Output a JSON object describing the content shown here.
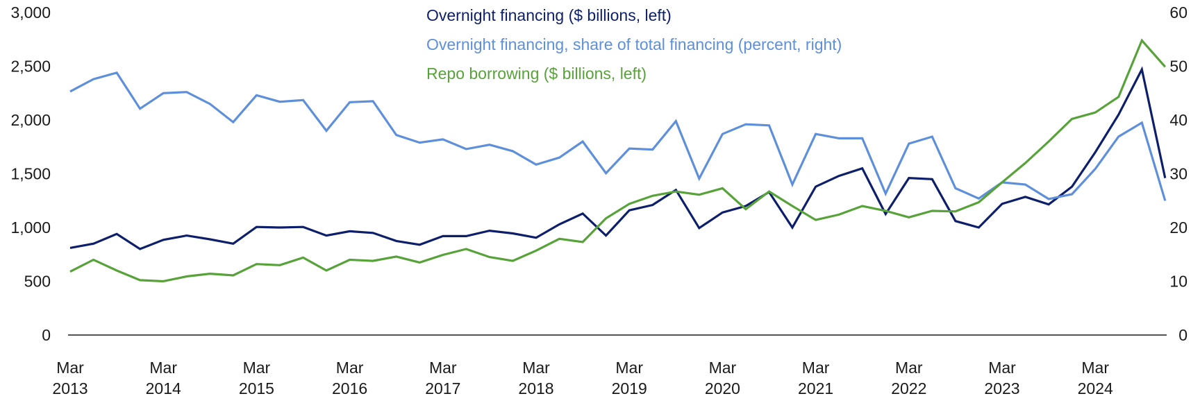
{
  "chart_data": {
    "type": "line",
    "title": "",
    "xlabel": "",
    "ylabel": "",
    "x": [
      "2013-03",
      "2013-06",
      "2013-09",
      "2013-12",
      "2014-03",
      "2014-06",
      "2014-09",
      "2014-12",
      "2015-03",
      "2015-06",
      "2015-09",
      "2015-12",
      "2016-03",
      "2016-06",
      "2016-09",
      "2016-12",
      "2017-03",
      "2017-06",
      "2017-09",
      "2017-12",
      "2018-03",
      "2018-06",
      "2018-09",
      "2018-12",
      "2019-03",
      "2019-06",
      "2019-09",
      "2019-12",
      "2020-03",
      "2020-06",
      "2020-09",
      "2020-12",
      "2021-03",
      "2021-06",
      "2021-09",
      "2021-12",
      "2022-03",
      "2022-06",
      "2022-09",
      "2022-12",
      "2023-03",
      "2023-06",
      "2023-09",
      "2023-12",
      "2024-03",
      "2024-06",
      "2024-09",
      "2024-12"
    ],
    "x_tick_labels": [
      {
        "x": "2013-03",
        "month": "Mar",
        "year": "2013"
      },
      {
        "x": "2014-03",
        "month": "Mar",
        "year": "2014"
      },
      {
        "x": "2015-03",
        "month": "Mar",
        "year": "2015"
      },
      {
        "x": "2016-03",
        "month": "Mar",
        "year": "2016"
      },
      {
        "x": "2017-03",
        "month": "Mar",
        "year": "2017"
      },
      {
        "x": "2018-03",
        "month": "Mar",
        "year": "2018"
      },
      {
        "x": "2019-03",
        "month": "Mar",
        "year": "2019"
      },
      {
        "x": "2020-03",
        "month": "Mar",
        "year": "2020"
      },
      {
        "x": "2021-03",
        "month": "Mar",
        "year": "2021"
      },
      {
        "x": "2022-03",
        "month": "Mar",
        "year": "2022"
      },
      {
        "x": "2023-03",
        "month": "Mar",
        "year": "2023"
      },
      {
        "x": "2024-03",
        "month": "Mar",
        "year": "2024"
      }
    ],
    "y_left": {
      "min": 0,
      "max": 3000,
      "ticks": [
        "0",
        "500",
        "1,000",
        "1,500",
        "2,000",
        "2,500",
        "3,000"
      ],
      "tick_values": [
        0,
        500,
        1000,
        1500,
        2000,
        2500,
        3000
      ]
    },
    "y_right": {
      "min": 0,
      "max": 60,
      "ticks": [
        "0",
        "10",
        "20",
        "30",
        "40",
        "50",
        "60"
      ],
      "tick_values": [
        0,
        10,
        20,
        30,
        40,
        50,
        60
      ]
    },
    "grid": false,
    "legend_position": "top-center",
    "series": [
      {
        "name": "Overnight financing ($ billions, left)",
        "axis": "left",
        "color": "#0d1f6b",
        "values": [
          810,
          850,
          940,
          800,
          885,
          925,
          890,
          850,
          1005,
          1000,
          1005,
          925,
          965,
          950,
          875,
          840,
          920,
          920,
          970,
          945,
          905,
          1030,
          1130,
          925,
          1160,
          1210,
          1350,
          995,
          1140,
          1200,
          1330,
          1000,
          1380,
          1480,
          1550,
          1125,
          1460,
          1450,
          1060,
          1000,
          1220,
          1285,
          1215,
          1380,
          1700,
          2050,
          2470,
          1460
        ]
      },
      {
        "name": "Overnight financing, share of total financing (percent, right)",
        "axis": "right",
        "color": "#5e8fdb",
        "values": [
          45.3,
          47.6,
          48.8,
          42.1,
          45.0,
          45.2,
          43.0,
          39.6,
          44.6,
          43.4,
          43.7,
          38.0,
          43.3,
          43.5,
          37.2,
          35.8,
          36.4,
          34.6,
          35.4,
          34.2,
          31.7,
          33.0,
          36.0,
          30.1,
          34.7,
          34.5,
          39.8,
          29.1,
          37.4,
          39.2,
          39.0,
          28.0,
          37.4,
          36.6,
          36.6,
          26.3,
          35.6,
          36.9,
          27.3,
          25.4,
          28.4,
          28.0,
          25.3,
          26.2,
          30.9,
          36.9,
          39.5,
          25.0
        ]
      },
      {
        "name": "Repo borrowing ($ billions, left)",
        "axis": "left",
        "color": "#58a23a",
        "values": [
          590,
          700,
          600,
          510,
          500,
          545,
          570,
          555,
          660,
          650,
          720,
          600,
          700,
          690,
          730,
          675,
          745,
          800,
          725,
          690,
          785,
          895,
          865,
          1085,
          1220,
          1295,
          1335,
          1305,
          1365,
          1170,
          1335,
          1200,
          1070,
          1120,
          1200,
          1155,
          1095,
          1155,
          1150,
          1235,
          1420,
          1600,
          1800,
          2010,
          2070,
          2215,
          2740,
          2495
        ]
      }
    ]
  }
}
